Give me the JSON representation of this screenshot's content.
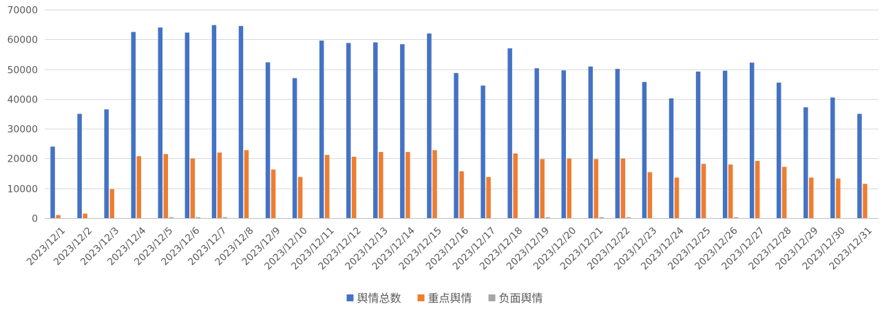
{
  "chart_data": {
    "type": "bar",
    "title": "",
    "xlabel": "",
    "ylabel": "",
    "ylim": [
      0,
      70000
    ],
    "yticks": [
      "0",
      "10000",
      "20000",
      "30000",
      "40000",
      "50000",
      "60000",
      "70000"
    ],
    "grid": true,
    "legend_position": "bottom",
    "categories": [
      "2023/12/1",
      "2023/12/2",
      "2023/12/3",
      "2023/12/4",
      "2023/12/5",
      "2023/12/6",
      "2023/12/7",
      "2023/12/8",
      "2023/12/9",
      "2023/12/10",
      "2023/12/11",
      "2023/12/12",
      "2023/12/13",
      "2023/12/14",
      "2023/12/15",
      "2023/12/16",
      "2023/12/17",
      "2023/12/18",
      "2023/12/19",
      "2023/12/20",
      "2023/12/21",
      "2023/12/22",
      "2023/12/23",
      "2023/12/24",
      "2023/12/25",
      "2023/12/26",
      "2023/12/27",
      "2023/12/28",
      "2023/12/29",
      "2023/12/30",
      "2023/12/31"
    ],
    "series": [
      {
        "name": "舆情总数",
        "color": "#4472C4",
        "values": [
          24000,
          35000,
          36500,
          62500,
          64000,
          62300,
          64800,
          64500,
          52300,
          47000,
          59600,
          58800,
          59000,
          58400,
          62000,
          48700,
          44500,
          57000,
          50300,
          49600,
          50900,
          50100,
          45700,
          40200,
          49200,
          49500,
          52200,
          45500,
          37200,
          40500,
          35000
        ]
      },
      {
        "name": "重点舆情",
        "color": "#ED7D31",
        "values": [
          1000,
          1500,
          9700,
          20800,
          21500,
          20000,
          22000,
          22800,
          16300,
          13800,
          21200,
          20600,
          22200,
          22200,
          22800,
          15700,
          13800,
          21700,
          19800,
          20000,
          19800,
          20000,
          15400,
          13600,
          18200,
          18000,
          19200,
          17200,
          13600,
          13300,
          11500
        ]
      },
      {
        "name": "负面舆情",
        "color": "#A5A5A5",
        "values": [
          0,
          0,
          0,
          0,
          300,
          300,
          300,
          0,
          0,
          0,
          0,
          0,
          0,
          0,
          0,
          0,
          0,
          0,
          300,
          0,
          300,
          300,
          0,
          0,
          0,
          300,
          0,
          0,
          0,
          0,
          0
        ]
      }
    ]
  }
}
